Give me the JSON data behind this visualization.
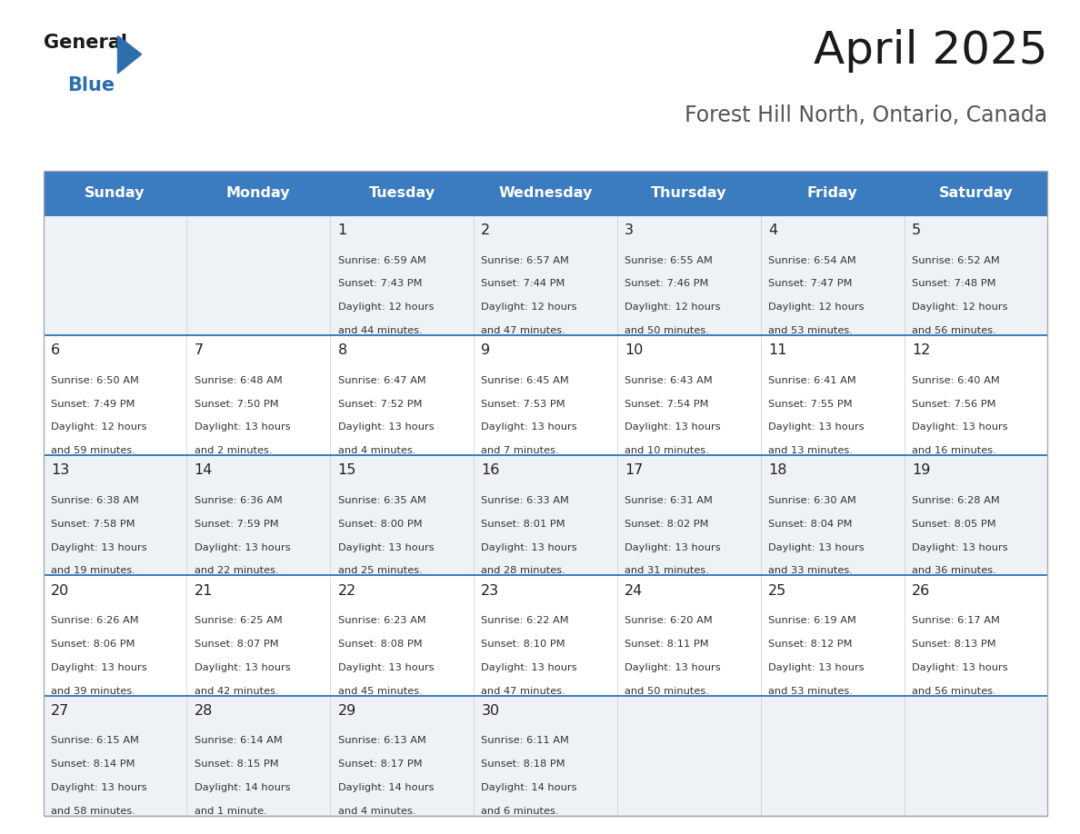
{
  "title": "April 2025",
  "subtitle": "Forest Hill North, Ontario, Canada",
  "days_of_week": [
    "Sunday",
    "Monday",
    "Tuesday",
    "Wednesday",
    "Thursday",
    "Friday",
    "Saturday"
  ],
  "header_bg": "#3b7bbf",
  "header_text": "#ffffff",
  "row_bg_odd": "#eef2f7",
  "row_bg_even": "#ffffff",
  "cell_text_color": "#333333",
  "day_number_color": "#222222",
  "divider_color": "#3b7bbf",
  "border_color": "#aaaaaa",
  "weeks": [
    [
      {
        "day": "",
        "sunrise": "",
        "sunset": "",
        "daylight": ""
      },
      {
        "day": "",
        "sunrise": "",
        "sunset": "",
        "daylight": ""
      },
      {
        "day": "1",
        "sunrise": "Sunrise: 6:59 AM",
        "sunset": "Sunset: 7:43 PM",
        "daylight": "Daylight: 12 hours\nand 44 minutes."
      },
      {
        "day": "2",
        "sunrise": "Sunrise: 6:57 AM",
        "sunset": "Sunset: 7:44 PM",
        "daylight": "Daylight: 12 hours\nand 47 minutes."
      },
      {
        "day": "3",
        "sunrise": "Sunrise: 6:55 AM",
        "sunset": "Sunset: 7:46 PM",
        "daylight": "Daylight: 12 hours\nand 50 minutes."
      },
      {
        "day": "4",
        "sunrise": "Sunrise: 6:54 AM",
        "sunset": "Sunset: 7:47 PM",
        "daylight": "Daylight: 12 hours\nand 53 minutes."
      },
      {
        "day": "5",
        "sunrise": "Sunrise: 6:52 AM",
        "sunset": "Sunset: 7:48 PM",
        "daylight": "Daylight: 12 hours\nand 56 minutes."
      }
    ],
    [
      {
        "day": "6",
        "sunrise": "Sunrise: 6:50 AM",
        "sunset": "Sunset: 7:49 PM",
        "daylight": "Daylight: 12 hours\nand 59 minutes."
      },
      {
        "day": "7",
        "sunrise": "Sunrise: 6:48 AM",
        "sunset": "Sunset: 7:50 PM",
        "daylight": "Daylight: 13 hours\nand 2 minutes."
      },
      {
        "day": "8",
        "sunrise": "Sunrise: 6:47 AM",
        "sunset": "Sunset: 7:52 PM",
        "daylight": "Daylight: 13 hours\nand 4 minutes."
      },
      {
        "day": "9",
        "sunrise": "Sunrise: 6:45 AM",
        "sunset": "Sunset: 7:53 PM",
        "daylight": "Daylight: 13 hours\nand 7 minutes."
      },
      {
        "day": "10",
        "sunrise": "Sunrise: 6:43 AM",
        "sunset": "Sunset: 7:54 PM",
        "daylight": "Daylight: 13 hours\nand 10 minutes."
      },
      {
        "day": "11",
        "sunrise": "Sunrise: 6:41 AM",
        "sunset": "Sunset: 7:55 PM",
        "daylight": "Daylight: 13 hours\nand 13 minutes."
      },
      {
        "day": "12",
        "sunrise": "Sunrise: 6:40 AM",
        "sunset": "Sunset: 7:56 PM",
        "daylight": "Daylight: 13 hours\nand 16 minutes."
      }
    ],
    [
      {
        "day": "13",
        "sunrise": "Sunrise: 6:38 AM",
        "sunset": "Sunset: 7:58 PM",
        "daylight": "Daylight: 13 hours\nand 19 minutes."
      },
      {
        "day": "14",
        "sunrise": "Sunrise: 6:36 AM",
        "sunset": "Sunset: 7:59 PM",
        "daylight": "Daylight: 13 hours\nand 22 minutes."
      },
      {
        "day": "15",
        "sunrise": "Sunrise: 6:35 AM",
        "sunset": "Sunset: 8:00 PM",
        "daylight": "Daylight: 13 hours\nand 25 minutes."
      },
      {
        "day": "16",
        "sunrise": "Sunrise: 6:33 AM",
        "sunset": "Sunset: 8:01 PM",
        "daylight": "Daylight: 13 hours\nand 28 minutes."
      },
      {
        "day": "17",
        "sunrise": "Sunrise: 6:31 AM",
        "sunset": "Sunset: 8:02 PM",
        "daylight": "Daylight: 13 hours\nand 31 minutes."
      },
      {
        "day": "18",
        "sunrise": "Sunrise: 6:30 AM",
        "sunset": "Sunset: 8:04 PM",
        "daylight": "Daylight: 13 hours\nand 33 minutes."
      },
      {
        "day": "19",
        "sunrise": "Sunrise: 6:28 AM",
        "sunset": "Sunset: 8:05 PM",
        "daylight": "Daylight: 13 hours\nand 36 minutes."
      }
    ],
    [
      {
        "day": "20",
        "sunrise": "Sunrise: 6:26 AM",
        "sunset": "Sunset: 8:06 PM",
        "daylight": "Daylight: 13 hours\nand 39 minutes."
      },
      {
        "day": "21",
        "sunrise": "Sunrise: 6:25 AM",
        "sunset": "Sunset: 8:07 PM",
        "daylight": "Daylight: 13 hours\nand 42 minutes."
      },
      {
        "day": "22",
        "sunrise": "Sunrise: 6:23 AM",
        "sunset": "Sunset: 8:08 PM",
        "daylight": "Daylight: 13 hours\nand 45 minutes."
      },
      {
        "day": "23",
        "sunrise": "Sunrise: 6:22 AM",
        "sunset": "Sunset: 8:10 PM",
        "daylight": "Daylight: 13 hours\nand 47 minutes."
      },
      {
        "day": "24",
        "sunrise": "Sunrise: 6:20 AM",
        "sunset": "Sunset: 8:11 PM",
        "daylight": "Daylight: 13 hours\nand 50 minutes."
      },
      {
        "day": "25",
        "sunrise": "Sunrise: 6:19 AM",
        "sunset": "Sunset: 8:12 PM",
        "daylight": "Daylight: 13 hours\nand 53 minutes."
      },
      {
        "day": "26",
        "sunrise": "Sunrise: 6:17 AM",
        "sunset": "Sunset: 8:13 PM",
        "daylight": "Daylight: 13 hours\nand 56 minutes."
      }
    ],
    [
      {
        "day": "27",
        "sunrise": "Sunrise: 6:15 AM",
        "sunset": "Sunset: 8:14 PM",
        "daylight": "Daylight: 13 hours\nand 58 minutes."
      },
      {
        "day": "28",
        "sunrise": "Sunrise: 6:14 AM",
        "sunset": "Sunset: 8:15 PM",
        "daylight": "Daylight: 14 hours\nand 1 minute."
      },
      {
        "day": "29",
        "sunrise": "Sunrise: 6:13 AM",
        "sunset": "Sunset: 8:17 PM",
        "daylight": "Daylight: 14 hours\nand 4 minutes."
      },
      {
        "day": "30",
        "sunrise": "Sunrise: 6:11 AM",
        "sunset": "Sunset: 8:18 PM",
        "daylight": "Daylight: 14 hours\nand 6 minutes."
      },
      {
        "day": "",
        "sunrise": "",
        "sunset": "",
        "daylight": ""
      },
      {
        "day": "",
        "sunrise": "",
        "sunset": "",
        "daylight": ""
      },
      {
        "day": "",
        "sunrise": "",
        "sunset": "",
        "daylight": ""
      }
    ]
  ]
}
